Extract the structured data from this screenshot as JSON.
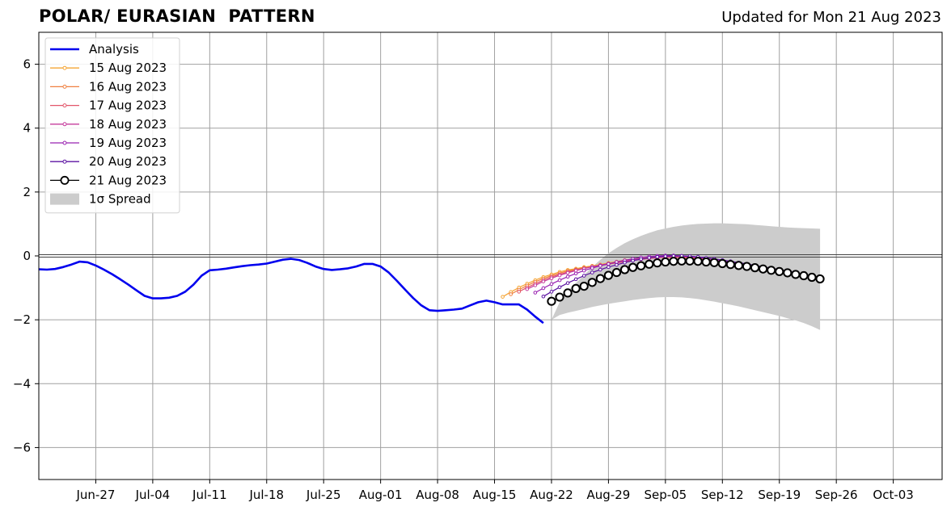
{
  "header": {
    "title": "POLAR/ EURASIAN  PATTERN",
    "subtitle": "Updated for Mon 21 Aug 2023"
  },
  "colors": {
    "analysis": "#0000ee",
    "spread": "#cccccc",
    "grid": "#a0a0a0",
    "zero_line": "#444444",
    "latest_forecast": "#000000"
  },
  "chart_data": {
    "type": "line",
    "title": "",
    "xlabel": "",
    "ylabel": "",
    "xlim": [
      "2023-06-20",
      "2023-10-09"
    ],
    "ylim": [
      -7,
      7
    ],
    "grid": true,
    "legend_position": "top-left",
    "x_ticks": [
      "2023-06-27",
      "2023-07-04",
      "2023-07-11",
      "2023-07-18",
      "2023-07-25",
      "2023-08-01",
      "2023-08-08",
      "2023-08-15",
      "2023-08-22",
      "2023-08-29",
      "2023-09-05",
      "2023-09-12",
      "2023-09-19",
      "2023-09-26",
      "2023-10-03"
    ],
    "x_tick_labels": [
      "Jun-27",
      "Jul-04",
      "Jul-11",
      "Jul-18",
      "Jul-25",
      "Aug-01",
      "Aug-08",
      "Aug-15",
      "Aug-22",
      "Aug-29",
      "Sep-05",
      "Sep-12",
      "Sep-19",
      "Sep-26",
      "Oct-03"
    ],
    "y_ticks": [
      -6,
      -4,
      -2,
      0,
      2,
      4,
      6
    ],
    "y_tick_labels": [
      "−6",
      "−4",
      "−2",
      "0",
      "2",
      "4",
      "6"
    ],
    "analysis": {
      "name": "Analysis",
      "color": "#0000ee",
      "start": "2023-06-20",
      "values": [
        -0.42,
        -0.43,
        -0.41,
        -0.35,
        -0.27,
        -0.18,
        -0.2,
        -0.3,
        -0.43,
        -0.57,
        -0.73,
        -0.9,
        -1.08,
        -1.25,
        -1.33,
        -1.33,
        -1.31,
        -1.25,
        -1.12,
        -0.9,
        -0.62,
        -0.45,
        -0.43,
        -0.4,
        -0.36,
        -0.32,
        -0.29,
        -0.27,
        -0.24,
        -0.18,
        -0.12,
        -0.09,
        -0.13,
        -0.22,
        -0.33,
        -0.41,
        -0.44,
        -0.42,
        -0.39,
        -0.33,
        -0.25,
        -0.25,
        -0.33,
        -0.52,
        -0.78,
        -1.05,
        -1.32,
        -1.55,
        -1.7,
        -1.72,
        -1.7,
        -1.68,
        -1.65,
        -1.55,
        -1.45,
        -1.4,
        -1.45,
        -1.52,
        -1.52,
        -1.52,
        -1.68,
        -1.9,
        -2.1
      ]
    },
    "forecasts": [
      {
        "name": "15 Aug 2023",
        "color": "#f5a535",
        "start": "2023-08-16",
        "values": [
          -1.28,
          -1.13,
          -0.99,
          -0.87,
          -0.76,
          -0.66,
          -0.58,
          -0.5,
          -0.44,
          -0.4,
          -0.35,
          -0.31,
          -0.27,
          -0.22,
          -0.18,
          -0.13,
          -0.1,
          -0.07,
          -0.05,
          -0.04,
          -0.04,
          -0.04,
          -0.05,
          -0.07,
          -0.09,
          -0.12,
          -0.15,
          -0.19,
          -0.23,
          -0.27,
          -0.31,
          -0.35
        ]
      },
      {
        "name": "16 Aug 2023",
        "color": "#ef8040",
        "start": "2023-08-17",
        "values": [
          -1.2,
          -1.06,
          -0.93,
          -0.81,
          -0.71,
          -0.62,
          -0.54,
          -0.47,
          -0.42,
          -0.37,
          -0.33,
          -0.29,
          -0.25,
          -0.21,
          -0.17,
          -0.13,
          -0.1,
          -0.07,
          -0.05,
          -0.04,
          -0.04,
          -0.05,
          -0.07,
          -0.09,
          -0.12,
          -0.15,
          -0.19,
          -0.23,
          -0.27,
          -0.31,
          -0.35,
          -0.38
        ]
      },
      {
        "name": "17 Aug 2023",
        "color": "#e2566a",
        "start": "2023-08-18",
        "values": [
          -1.12,
          -0.99,
          -0.87,
          -0.76,
          -0.66,
          -0.58,
          -0.5,
          -0.44,
          -0.39,
          -0.34,
          -0.3,
          -0.26,
          -0.22,
          -0.18,
          -0.14,
          -0.11,
          -0.08,
          -0.06,
          -0.04,
          -0.04,
          -0.04,
          -0.05,
          -0.07,
          -0.1,
          -0.13,
          -0.17,
          -0.21,
          -0.26,
          -0.3,
          -0.34,
          -0.38,
          -0.42
        ]
      },
      {
        "name": "18 Aug 2023",
        "color": "#c53c9c",
        "start": "2023-08-19",
        "values": [
          -1.04,
          -0.92,
          -0.8,
          -0.7,
          -0.61,
          -0.53,
          -0.46,
          -0.4,
          -0.34,
          -0.29,
          -0.24,
          -0.2,
          -0.16,
          -0.12,
          -0.09,
          -0.06,
          -0.04,
          -0.03,
          -0.02,
          -0.02,
          -0.03,
          -0.05,
          -0.08,
          -0.11,
          -0.15,
          -0.19,
          -0.23,
          -0.28,
          -0.32,
          -0.37,
          -0.41,
          -0.46
        ]
      },
      {
        "name": "19 Aug 2023",
        "color": "#9820b0",
        "start": "2023-08-20",
        "values": [
          -1.15,
          -1.01,
          -0.88,
          -0.76,
          -0.65,
          -0.55,
          -0.46,
          -0.38,
          -0.31,
          -0.25,
          -0.19,
          -0.14,
          -0.09,
          -0.05,
          -0.02,
          0.0,
          0.01,
          0.01,
          0.0,
          -0.02,
          -0.04,
          -0.07,
          -0.1,
          -0.14,
          -0.18,
          -0.22,
          -0.27,
          -0.31,
          -0.35,
          -0.4,
          -0.44,
          -0.48
        ]
      },
      {
        "name": "20 Aug 2023",
        "color": "#5c13a2",
        "start": "2023-08-21",
        "values": [
          -1.27,
          -1.12,
          -0.98,
          -0.85,
          -0.73,
          -0.62,
          -0.52,
          -0.43,
          -0.35,
          -0.28,
          -0.21,
          -0.15,
          -0.1,
          -0.06,
          -0.03,
          -0.01,
          0.0,
          0.0,
          -0.01,
          -0.03,
          -0.06,
          -0.09,
          -0.13,
          -0.17,
          -0.21,
          -0.25,
          -0.3,
          -0.34,
          -0.39,
          -0.43,
          -0.48,
          -0.52
        ]
      },
      {
        "name": "21 Aug 2023",
        "color": "#000000",
        "start": "2023-08-22",
        "values": [
          -1.42,
          -1.29,
          -1.16,
          -1.02,
          -0.95,
          -0.83,
          -0.71,
          -0.61,
          -0.52,
          -0.43,
          -0.36,
          -0.31,
          -0.26,
          -0.22,
          -0.19,
          -0.17,
          -0.16,
          -0.16,
          -0.17,
          -0.19,
          -0.21,
          -0.24,
          -0.27,
          -0.3,
          -0.33,
          -0.37,
          -0.41,
          -0.45,
          -0.49,
          -0.53,
          -0.58,
          -0.62,
          -0.67,
          -0.72
        ]
      }
    ],
    "spread": {
      "name": "1σ Spread",
      "color": "#cccccc",
      "start": "2023-08-22",
      "upper": [
        -2.0,
        -1.45,
        -1.1,
        -0.85,
        -0.6,
        -0.35,
        -0.12,
        0.08,
        0.25,
        0.4,
        0.52,
        0.63,
        0.72,
        0.8,
        0.86,
        0.91,
        0.95,
        0.98,
        1.0,
        1.01,
        1.02,
        1.02,
        1.01,
        1.0,
        0.99,
        0.97,
        0.95,
        0.93,
        0.91,
        0.89,
        0.88,
        0.87,
        0.86,
        0.85
      ],
      "lower": [
        -2.0,
        -1.85,
        -1.78,
        -1.72,
        -1.66,
        -1.6,
        -1.55,
        -1.5,
        -1.46,
        -1.42,
        -1.38,
        -1.35,
        -1.32,
        -1.3,
        -1.29,
        -1.29,
        -1.3,
        -1.32,
        -1.35,
        -1.39,
        -1.43,
        -1.48,
        -1.53,
        -1.58,
        -1.64,
        -1.7,
        -1.76,
        -1.82,
        -1.88,
        -1.95,
        -2.02,
        -2.1,
        -2.2,
        -2.32
      ]
    }
  }
}
